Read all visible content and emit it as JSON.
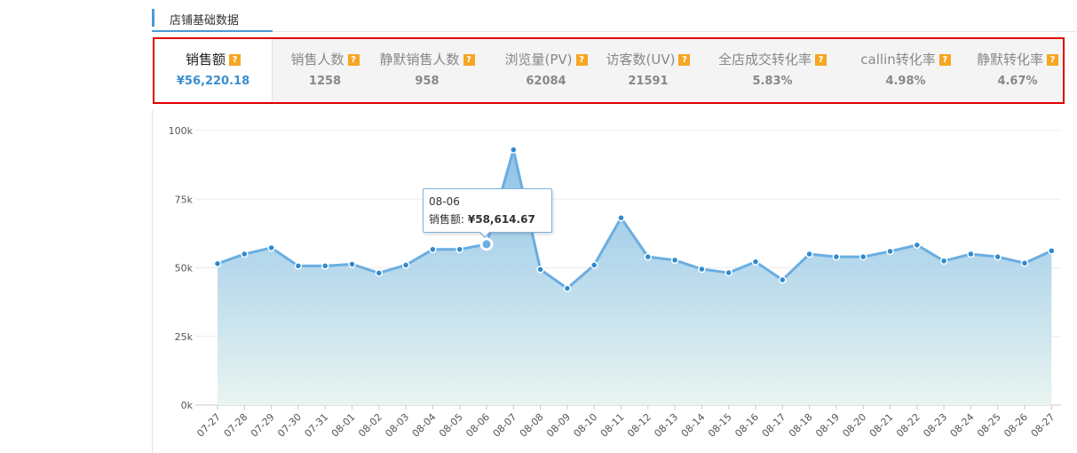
{
  "section": {
    "title": "店铺基础数据"
  },
  "metrics": [
    {
      "label": "销售额",
      "value": "¥56,220.18",
      "active": true
    },
    {
      "label": "销售人数",
      "value": "1258",
      "active": false
    },
    {
      "label": "静默销售人数",
      "value": "958",
      "active": false
    },
    {
      "label": "浏览量(PV)",
      "value": "62084",
      "active": false
    },
    {
      "label": "访客数(UV)",
      "value": "21591",
      "active": false
    },
    {
      "label": "全店成交转化率",
      "value": "5.83%",
      "active": false
    },
    {
      "label": "callin转化率",
      "value": "4.98%",
      "active": false
    },
    {
      "label": "静默转化率",
      "value": "4.67%",
      "active": false
    }
  ],
  "help_glyph": "?",
  "colors": {
    "accent": "#3b8fcf",
    "line": "#6aaee2",
    "fill_top": "#8ec2e8",
    "fill_bottom": "#e8f4f0",
    "highlight_box": "#e00000",
    "help_badge": "#f5a623"
  },
  "tooltip": {
    "date": "08-06",
    "series": "销售额",
    "separator": ": ",
    "value": "¥58,614.67"
  },
  "chart_data": {
    "type": "area",
    "title": "",
    "xlabel": "",
    "ylabel": "",
    "ylim": [
      0,
      100000
    ],
    "y_ticks": [
      "0k",
      "25k",
      "50k",
      "75k",
      "100k"
    ],
    "grid": true,
    "legend": "none",
    "highlight_index": 10,
    "categories": [
      "07-27",
      "07-28",
      "07-29",
      "07-30",
      "07-31",
      "08-01",
      "08-02",
      "08-03",
      "08-04",
      "08-05",
      "08-06",
      "08-07",
      "08-08",
      "08-09",
      "08-10",
      "08-11",
      "08-12",
      "08-13",
      "08-14",
      "08-15",
      "08-16",
      "08-17",
      "08-18",
      "08-19",
      "08-20",
      "08-21",
      "08-22",
      "08-23",
      "08-24",
      "08-25",
      "08-26",
      "08-27"
    ],
    "series": [
      {
        "values": [
          51500,
          55000,
          57300,
          50700,
          50700,
          51300,
          48100,
          51000,
          56700,
          56700,
          58614.67,
          93000,
          49400,
          42500,
          51000,
          68200,
          54000,
          52800,
          49500,
          48200,
          52200,
          45600,
          55000,
          54000,
          54000,
          56000,
          58300,
          52500,
          55000,
          54000,
          51700,
          56200
        ]
      }
    ]
  }
}
